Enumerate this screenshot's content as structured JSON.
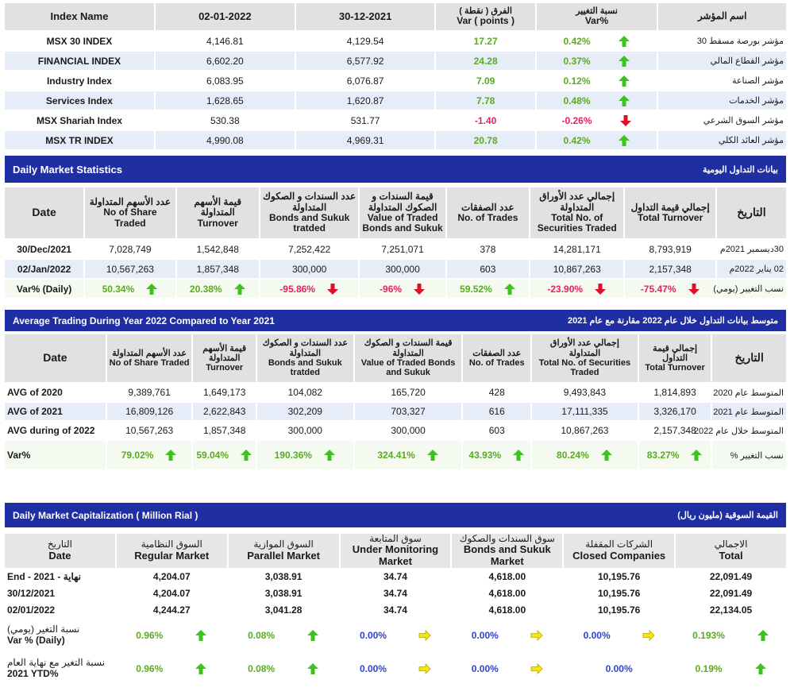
{
  "index_table": {
    "headers": {
      "name": "Index Name",
      "date1": "02-01-2022",
      "date2": "30-12-2021",
      "var_ar": "الفرق ( نقطة )",
      "var_en": "Var ( points )",
      "pct_ar": "نسبة التغيير",
      "pct_en": "Var%",
      "name_ar": "اسم المؤشر"
    },
    "rows": [
      {
        "name": "MSX 30 INDEX",
        "d1": "4,146.81",
        "d2": "4,129.54",
        "var": "17.27",
        "pct": "0.42%",
        "dir": "up",
        "ar": "مؤشر بورصة مسقط 30"
      },
      {
        "name": "FINANCIAL INDEX",
        "d1": "6,602.20",
        "d2": "6,577.92",
        "var": "24.28",
        "pct": "0.37%",
        "dir": "up",
        "ar": "مؤشر القطاع المالي"
      },
      {
        "name": "Industry Index",
        "d1": "6,083.95",
        "d2": "6,076.87",
        "var": "7.09",
        "pct": "0.12%",
        "dir": "up",
        "ar": "مؤشر الصناعة"
      },
      {
        "name": "Services Index",
        "d1": "1,628.65",
        "d2": "1,620.87",
        "var": "7.78",
        "pct": "0.48%",
        "dir": "up",
        "ar": "مؤشر الخدمات"
      },
      {
        "name": "MSX Shariah Index",
        "d1": "530.38",
        "d2": "531.77",
        "var": "-1.40",
        "pct": "-0.26%",
        "dir": "down",
        "ar": "مؤشر السوق الشرعي"
      },
      {
        "name": "MSX TR INDEX",
        "d1": "4,990.08",
        "d2": "4,969.31",
        "var": "20.78",
        "pct": "0.42%",
        "dir": "up",
        "ar": "مؤشر العائد الكلي"
      }
    ]
  },
  "daily_stats": {
    "title": "Daily Market Statistics",
    "title_ar": "بيانات التداول اليومية",
    "headers": [
      {
        "ar": "",
        "en": "Date"
      },
      {
        "ar": "عدد الأسهم المتداولة",
        "en": "No of Share Traded"
      },
      {
        "ar": "قيمة الأسهم المتداولة",
        "en": "Turnover"
      },
      {
        "ar": "عدد السندات و الصكوك المتداولة",
        "en": "Bonds and Sukuk tratded"
      },
      {
        "ar": "قيمة السندات و الصكوك المتداولة",
        "en": "Value of Traded Bonds and Sukuk"
      },
      {
        "ar": "عدد الصفقات",
        "en": "No. of Trades"
      },
      {
        "ar": "إجمالي عدد الأوراق المتداولة",
        "en": "Total No. of Securities Traded"
      },
      {
        "ar": "إجمالي قيمة التداول",
        "en": "Total Turnover"
      },
      {
        "ar": "التاريخ",
        "en": ""
      }
    ],
    "rows": [
      {
        "date": "30/Dec/2021",
        "v": [
          "7,028,749",
          "1,542,848",
          "7,252,422",
          "7,251,071",
          "378",
          "14,281,171",
          "8,793,919"
        ],
        "ar": "30ديسمبر 2021م"
      },
      {
        "date": "02/Jan/2022",
        "v": [
          "10,567,263",
          "1,857,348",
          "300,000",
          "300,000",
          "603",
          "10,867,263",
          "2,157,348"
        ],
        "ar": "02 يناير 2022م"
      }
    ],
    "var_row": {
      "label": "Var% (Daily)",
      "ar": "نسب التغيير (يومي)",
      "vals": [
        {
          "v": "50.34%",
          "dir": "up"
        },
        {
          "v": "20.38%",
          "dir": "up"
        },
        {
          "v": "-95.86%",
          "dir": "down"
        },
        {
          "v": "-96%",
          "dir": "down"
        },
        {
          "v": "59.52%",
          "dir": "up"
        },
        {
          "v": "-23.90%",
          "dir": "down"
        },
        {
          "v": "-75.47%",
          "dir": "down"
        }
      ]
    }
  },
  "avg_stats": {
    "title": "Average Trading During Year 2022 Compared to Year 2021",
    "title_ar": "متوسط بيانات التداول خلال عام 2022 مقارنة مع عام 2021",
    "headers": [
      {
        "ar": "",
        "en": "Date"
      },
      {
        "ar": "عدد الأسهم المتداولة",
        "en": "No of Share Traded"
      },
      {
        "ar": "قيمة الأسهم المتداولة",
        "en": "Turnover"
      },
      {
        "ar": "عدد السندات و الصكوك المتداولة",
        "en": "Bonds and Sukuk tratded"
      },
      {
        "ar": "قيمة السندات و الصكوك المتداولة",
        "en": "Value of Traded Bonds and Sukuk"
      },
      {
        "ar": "عدد الصفقات",
        "en": "No. of Trades"
      },
      {
        "ar": "إجمالي عدد الأوراق المتداولة",
        "en": "Total No. of Securities Traded"
      },
      {
        "ar": "إجمالي قيمة التداول",
        "en": "Total Turnover"
      },
      {
        "ar": "التاريخ",
        "en": ""
      }
    ],
    "rows": [
      {
        "date": "AVG of 2020",
        "v": [
          "9,389,761",
          "1,649,173",
          "104,082",
          "165,720",
          "428",
          "9,493,843",
          "1,814,893"
        ],
        "ar": "المتوسط عام 2020"
      },
      {
        "date": "AVG of 2021",
        "v": [
          "16,809,126",
          "2,622,843",
          "302,209",
          "703,327",
          "616",
          "17,111,335",
          "3,326,170"
        ],
        "ar": "المتوسط عام 2021"
      },
      {
        "date": "AVG during of 2022",
        "v": [
          "10,567,263",
          "1,857,348",
          "300,000",
          "300,000",
          "603",
          "10,867,263",
          "2,157,348"
        ],
        "ar": "المتوسط خلال عام 2022"
      }
    ],
    "var_row": {
      "label": "Var%",
      "ar": "نسب التغيير %",
      "vals": [
        {
          "v": "79.02%",
          "dir": "up"
        },
        {
          "v": "59.04%",
          "dir": "up"
        },
        {
          "v": "190.36%",
          "dir": "up"
        },
        {
          "v": "324.41%",
          "dir": "up"
        },
        {
          "v": "43.93%",
          "dir": "up"
        },
        {
          "v": "80.24%",
          "dir": "up"
        },
        {
          "v": "83.27%",
          "dir": "up"
        }
      ]
    }
  },
  "cap": {
    "title": "Daily Market Capitalization ( Million Rial )",
    "title_ar": "القيمة السوقية (مليون ريال)",
    "headers": [
      {
        "ar": "التاريخ",
        "en": "Date"
      },
      {
        "ar": "السوق النظامية",
        "en": "Regular Market"
      },
      {
        "ar": "السوق الموازية",
        "en": "Parallel Market"
      },
      {
        "ar": "سوق المتابعة",
        "en": "Under Monitoring Market"
      },
      {
        "ar": "سوق السندات والصكوك",
        "en": "Bonds and Sukuk Market"
      },
      {
        "ar": "الشركات المقفلة",
        "en": "Closed Companies"
      },
      {
        "ar": "الاجمالي",
        "en": "Total"
      }
    ],
    "rows": [
      {
        "date": "End - 2021 - نهاية",
        "v": [
          "4,204.07",
          "3,038.91",
          "34.74",
          "4,618.00",
          "10,195.76",
          "22,091.49"
        ]
      },
      {
        "date": "30/12/2021",
        "v": [
          "4,204.07",
          "3,038.91",
          "34.74",
          "4,618.00",
          "10,195.76",
          "22,091.49"
        ]
      },
      {
        "date": "02/01/2022",
        "v": [
          "4,244.27",
          "3,041.28",
          "34.74",
          "4,618.00",
          "10,195.76",
          "22,134.05"
        ]
      }
    ],
    "var_rows": [
      {
        "ar": "نسبة التغير (يومي)",
        "en": "Var % (Daily)",
        "vals": [
          {
            "v": "0.96%",
            "dir": "up"
          },
          {
            "v": "0.08%",
            "dir": "up"
          },
          {
            "v": "0.00%",
            "dir": "flat"
          },
          {
            "v": "0.00%",
            "dir": "flat"
          },
          {
            "v": "0.00%",
            "dir": "flat"
          },
          {
            "v": "0.193%",
            "dir": "up"
          }
        ]
      },
      {
        "ar": "نسبة التغير مع نهاية العام",
        "en": "2021 YTD%",
        "vals": [
          {
            "v": "0.96%",
            "dir": "up"
          },
          {
            "v": "0.08%",
            "dir": "up"
          },
          {
            "v": "0.00%",
            "dir": "flat"
          },
          {
            "v": "0.00%",
            "dir": "flat"
          },
          {
            "v": "0.00%",
            "dir": "none"
          },
          {
            "v": "0.19%",
            "dir": "up"
          }
        ]
      }
    ]
  },
  "colors": {
    "up": "#5aaa22",
    "down": "#e0245e",
    "flat": "#3344cc",
    "banner": "#1f2ea3",
    "arrow_flat": "#f5e60f"
  }
}
